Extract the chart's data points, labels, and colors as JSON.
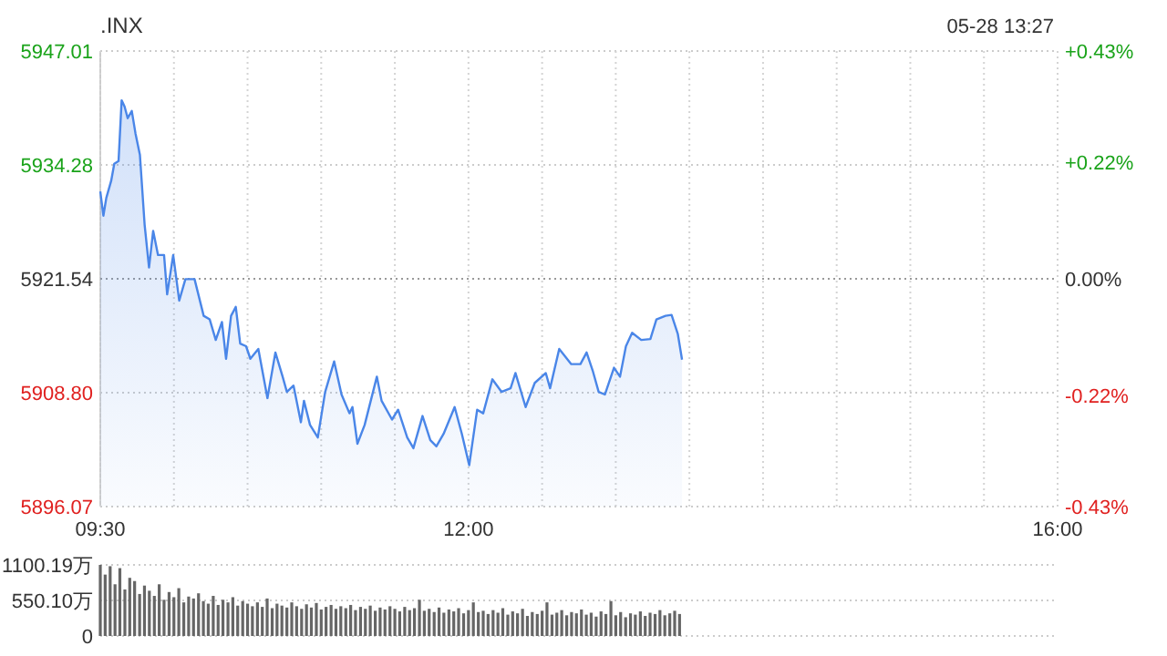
{
  "chart_data": [
    {
      "type": "area",
      "title": ".INX",
      "annotations": [
        "05-28 13:27"
      ],
      "color": "#4a86e8",
      "grid": true,
      "xlim": [
        9.5,
        16
      ],
      "xticks": [
        {
          "value": 9.5,
          "label": "09:30"
        },
        {
          "value": 10,
          "label": null
        },
        {
          "value": 10.5,
          "label": null
        },
        {
          "value": 11,
          "label": null
        },
        {
          "value": 11.5,
          "label": null
        },
        {
          "value": 12,
          "label": "12:00"
        },
        {
          "value": 12.5,
          "label": null
        },
        {
          "value": 13,
          "label": null
        },
        {
          "value": 13.5,
          "label": null
        },
        {
          "value": 14,
          "label": null
        },
        {
          "value": 14.5,
          "label": null
        },
        {
          "value": 15,
          "label": null
        },
        {
          "value": 15.5,
          "label": null
        },
        {
          "value": 16,
          "label": "16:00"
        }
      ],
      "ylim": [
        5896.07,
        5947.01
      ],
      "yticks": [
        5896.07,
        {
          "value": 5908.8,
          "label": "5908.80"
        },
        5921.54,
        5934.28,
        5947.01
      ],
      "y2lim": [
        -0.43,
        0.43
      ],
      "y2ticks": [
        {
          "value": -0.43,
          "label": "-0.43%"
        },
        {
          "value": -0.22,
          "label": "-0.22%"
        },
        {
          "value": 0,
          "label": "0.00%"
        },
        {
          "value": 0.22,
          "label": "+0.22%"
        },
        {
          "value": 0.43,
          "label": "+0.43%"
        }
      ],
      "ref_lines": [
        {
          "axis": "y2",
          "value": 0,
          "color": "#999999",
          "line_style": "dotted"
        }
      ],
      "x": [
        9.5,
        9.521,
        9.541,
        9.574,
        9.595,
        9.624,
        9.645,
        9.665,
        9.686,
        9.714,
        9.739,
        9.769,
        9.801,
        9.831,
        9.859,
        9.892,
        9.933,
        9.954,
        9.995,
        10.036,
        10.078,
        10.14,
        10.202,
        10.243,
        10.284,
        10.326,
        10.354,
        10.388,
        10.42,
        10.45,
        10.49,
        10.519,
        10.573,
        10.635,
        10.689,
        10.738,
        10.767,
        10.812,
        10.862,
        10.883,
        10.924,
        10.977,
        11.027,
        11.088,
        11.138,
        11.192,
        11.212,
        11.246,
        11.295,
        11.378,
        11.41,
        11.481,
        11.522,
        11.584,
        11.626,
        11.688,
        11.741,
        11.782,
        11.831,
        11.906,
        11.955,
        12.005,
        12.059,
        12.1,
        12.162,
        12.224,
        12.286,
        12.319,
        12.388,
        12.45,
        12.525,
        12.554,
        12.616,
        12.698,
        12.76,
        12.802,
        12.843,
        12.884,
        12.926,
        12.988,
        13.029,
        13.069,
        13.111,
        13.173,
        13.235,
        13.276,
        13.338,
        13.379,
        13.421,
        13.45
      ],
      "values": [
        5931.3,
        5928.6,
        5930.6,
        5932.5,
        5934.4,
        5934.7,
        5941.5,
        5940.8,
        5939.5,
        5940.3,
        5937.8,
        5935.4,
        5927.6,
        5922.8,
        5926.9,
        5924.2,
        5924.2,
        5919.8,
        5924.2,
        5919.1,
        5921.5,
        5921.5,
        5917.4,
        5917.0,
        5914.7,
        5916.7,
        5912.6,
        5917.4,
        5918.4,
        5914.3,
        5914.0,
        5912.6,
        5913.7,
        5908.2,
        5913.3,
        5910.6,
        5908.9,
        5909.6,
        5905.5,
        5907.9,
        5905.2,
        5903.8,
        5908.9,
        5912.3,
        5908.6,
        5906.5,
        5907.2,
        5903.1,
        5905.2,
        5910.6,
        5907.9,
        5905.8,
        5906.9,
        5903.8,
        5902.6,
        5906.2,
        5903.5,
        5902.8,
        5904.2,
        5907.2,
        5904.2,
        5900.7,
        5906.9,
        5906.5,
        5910.3,
        5908.9,
        5909.3,
        5911.0,
        5907.2,
        5909.9,
        5911.0,
        5909.3,
        5913.7,
        5912.0,
        5912.0,
        5913.3,
        5911.3,
        5908.9,
        5908.6,
        5911.6,
        5910.6,
        5914.0,
        5915.5,
        5914.7,
        5914.8,
        5917.0,
        5917.4,
        5917.5,
        5915.4,
        5912.5
      ]
    },
    {
      "type": "bar",
      "color": "#666666",
      "grid": "y",
      "tick_labels": "y",
      "xlim": [
        9.5,
        16
      ],
      "ylim": [
        0,
        1100.19
      ],
      "yticks": [
        0,
        {
          "value": 550.1,
          "label": "550.10万"
        },
        {
          "value": 1100.19,
          "label": "1100.19万"
        }
      ],
      "x": [
        9.5,
        9.533,
        9.567,
        9.6,
        9.633,
        9.667,
        9.7,
        9.733,
        9.767,
        9.8,
        9.833,
        9.867,
        9.9,
        9.933,
        9.967,
        10,
        10.033,
        10.067,
        10.1,
        10.133,
        10.167,
        10.2,
        10.233,
        10.267,
        10.3,
        10.333,
        10.367,
        10.4,
        10.433,
        10.467,
        10.5,
        10.533,
        10.567,
        10.6,
        10.633,
        10.667,
        10.7,
        10.733,
        10.767,
        10.8,
        10.833,
        10.867,
        10.9,
        10.933,
        10.967,
        11,
        11.033,
        11.067,
        11.1,
        11.133,
        11.167,
        11.2,
        11.233,
        11.267,
        11.3,
        11.333,
        11.367,
        11.4,
        11.433,
        11.467,
        11.5,
        11.533,
        11.567,
        11.6,
        11.633,
        11.667,
        11.7,
        11.733,
        11.767,
        11.8,
        11.833,
        11.867,
        11.9,
        11.933,
        11.967,
        12,
        12.033,
        12.067,
        12.1,
        12.133,
        12.167,
        12.2,
        12.233,
        12.267,
        12.3,
        12.333,
        12.367,
        12.4,
        12.433,
        12.467,
        12.5,
        12.533,
        12.567,
        12.6,
        12.633,
        12.667,
        12.7,
        12.733,
        12.767,
        12.8,
        12.833,
        12.867,
        12.9,
        12.933,
        12.967,
        13,
        13.033,
        13.067,
        13.1,
        13.133,
        13.167,
        13.2,
        13.233,
        13.267,
        13.3,
        13.333,
        13.367,
        13.4,
        13.433
      ],
      "values": [
        1100,
        950,
        1080,
        800,
        1050,
        720,
        900,
        850,
        650,
        780,
        700,
        620,
        800,
        560,
        680,
        600,
        740,
        520,
        610,
        580,
        660,
        540,
        500,
        620,
        480,
        560,
        520,
        600,
        470,
        540,
        500,
        460,
        520,
        450,
        580,
        430,
        500,
        470,
        440,
        520,
        460,
        420,
        490,
        440,
        510,
        410,
        450,
        480,
        420,
        460,
        430,
        480,
        400,
        450,
        420,
        470,
        390,
        440,
        410,
        460,
        420,
        380,
        450,
        400,
        430,
        560,
        390,
        420,
        370,
        440,
        360,
        410,
        380,
        430,
        350,
        400,
        520,
        370,
        390,
        340,
        400,
        360,
        430,
        330,
        380,
        350,
        420,
        310,
        370,
        340,
        390,
        520,
        330,
        360,
        400,
        320,
        370,
        350,
        410,
        330,
        360,
        300,
        380,
        340,
        540,
        320,
        370,
        290,
        350,
        330,
        380,
        310,
        360,
        340,
        400,
        320,
        350,
        390,
        340
      ]
    }
  ]
}
